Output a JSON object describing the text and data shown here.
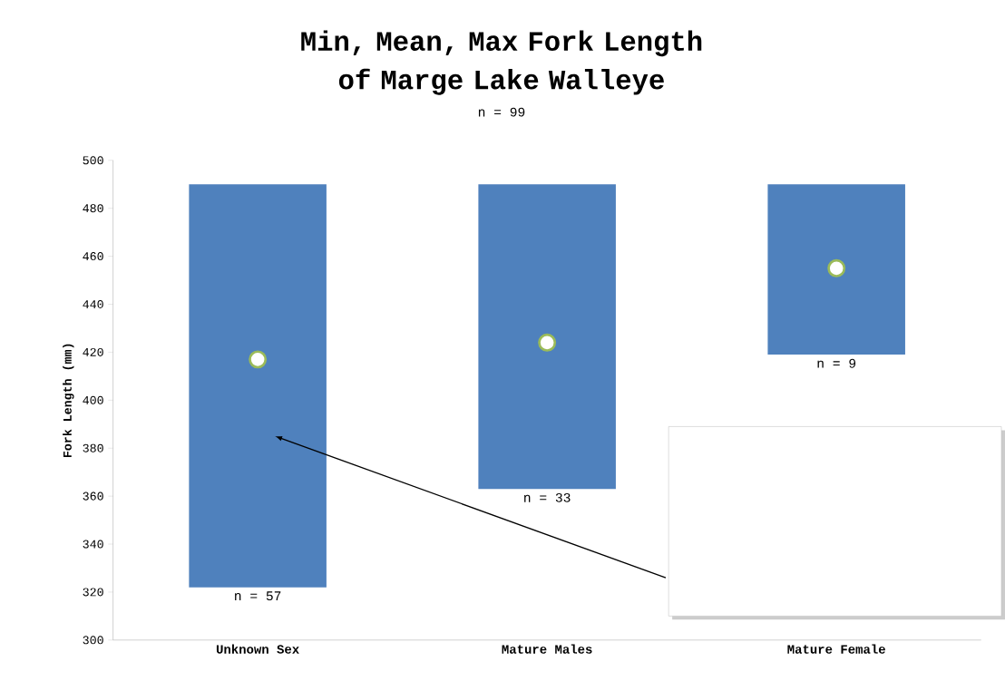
{
  "chart_data": {
    "type": "bar",
    "title": "Min, Mean, Max Fork Length of Marge Lake Walleye",
    "subtitle": "n = 99",
    "ylabel": "Fork Length (mm)",
    "categories": [
      "Unknown Sex",
      "Mature Males",
      "Mature Female"
    ],
    "series": [
      {
        "type": "bar",
        "color": "#4f81bd",
        "values": [
          168,
          127,
          71
        ],
        "base": [
          322,
          363,
          419
        ]
      },
      {
        "type": "scatter",
        "color": "#9bbb59",
        "values": [
          417,
          424,
          455
        ]
      }
    ],
    "ylim": [
      300,
      500
    ],
    "yticks": [
      300,
      320,
      340,
      360,
      380,
      400,
      420,
      440,
      460,
      480,
      500
    ],
    "annotations": [
      "n = 57",
      "n = 33",
      "n = 9"
    ]
  }
}
